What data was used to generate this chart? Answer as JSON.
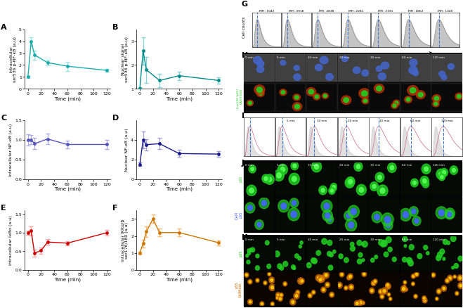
{
  "panels": {
    "A": {
      "x": [
        0,
        5,
        10,
        30,
        60,
        120
      ],
      "y": [
        1.0,
        4.0,
        2.85,
        2.2,
        1.9,
        1.55
      ],
      "yerr": [
        0.08,
        0.35,
        0.38,
        0.25,
        0.38,
        0.14
      ],
      "color": "#1AACAC",
      "light_color": "#88DDDD",
      "ylabel": "Intracellular\nser536 p-NF-κB (a.u)",
      "xlabel": "Time (min)",
      "ylim": [
        0,
        5
      ],
      "yticks": [
        0,
        1,
        2,
        3,
        4,
        5
      ],
      "xticks": [
        0,
        20,
        40,
        60,
        80,
        100,
        120
      ]
    },
    "B": {
      "x": [
        0,
        5,
        10,
        30,
        60,
        120
      ],
      "y": [
        1.0,
        2.6,
        1.8,
        1.35,
        1.55,
        1.35
      ],
      "yerr": [
        0.08,
        0.58,
        0.55,
        0.28,
        0.18,
        0.14
      ],
      "color": "#008B8B",
      "light_color": "#66CCCC",
      "ylabel": "Nuclear signal\nser536 p-NF-κB (a.u)",
      "xlabel": "Time (min)",
      "ylim": [
        1.0,
        3.5
      ],
      "yticks": [
        1,
        2,
        3
      ],
      "xticks": [
        0,
        20,
        40,
        60,
        80,
        100,
        120
      ]
    },
    "C": {
      "x": [
        0,
        5,
        10,
        30,
        60,
        120
      ],
      "y": [
        1.0,
        1.0,
        0.9,
        1.02,
        0.88,
        0.88
      ],
      "yerr": [
        0.14,
        0.12,
        0.14,
        0.14,
        0.1,
        0.11
      ],
      "color": "#5555BB",
      "light_color": "#9999DD",
      "ylabel": "Intracellular NF-κB (a.u)",
      "xlabel": "Time (min)",
      "ylim": [
        0,
        1.5
      ],
      "yticks": [
        0.0,
        0.5,
        1.0,
        1.5
      ],
      "xticks": [
        0,
        20,
        40,
        60,
        80,
        100,
        120
      ]
    },
    "D": {
      "x": [
        0,
        5,
        10,
        30,
        60,
        120
      ],
      "y": [
        1.5,
        4.0,
        3.5,
        3.6,
        2.6,
        2.55
      ],
      "yerr": [
        0.18,
        0.85,
        0.58,
        0.58,
        0.35,
        0.28
      ],
      "color": "#1A1A8B",
      "light_color": "#8888CC",
      "ylabel": "Nuclear NF-κB (a.u)",
      "xlabel": "Time (min)",
      "ylim": [
        0,
        6
      ],
      "yticks": [
        0,
        2,
        4
      ],
      "xticks": [
        0,
        20,
        40,
        60,
        80,
        100,
        120
      ]
    },
    "E": {
      "x": [
        0,
        5,
        10,
        20,
        30,
        60,
        120
      ],
      "y": [
        1.0,
        1.05,
        0.45,
        0.52,
        0.75,
        0.72,
        1.0
      ],
      "yerr": [
        0.05,
        0.12,
        0.09,
        0.08,
        0.08,
        0.06,
        0.08
      ],
      "color": "#CC0000",
      "light_color": "#FF8888",
      "ylabel": "Intracellular IκBα (a.u)",
      "xlabel": "Time (min)",
      "ylim": [
        0,
        1.6
      ],
      "yticks": [
        0.0,
        0.5,
        1.0,
        1.5
      ],
      "xticks": [
        0,
        20,
        40,
        60,
        80,
        100,
        120
      ]
    },
    "F": {
      "x": [
        0,
        5,
        10,
        20,
        30,
        60,
        120
      ],
      "y": [
        1.0,
        1.55,
        2.25,
        3.0,
        2.2,
        2.2,
        1.6
      ],
      "yerr": [
        0.06,
        0.22,
        0.32,
        0.25,
        0.22,
        0.22,
        0.15
      ],
      "color": "#CC7700",
      "light_color": "#FFAA55",
      "ylabel": "Intracellular IKKα/β\nser176/180 (a.u)",
      "xlabel": "Time (min)",
      "ylim": [
        0,
        3.5
      ],
      "yticks": [
        0,
        1,
        2,
        3
      ],
      "xticks": [
        0,
        20,
        40,
        60,
        80,
        100,
        120
      ]
    }
  },
  "G_mfi": [
    "MFI: 1042",
    "MFI: 3918",
    "MFI: 2838",
    "MFI: 2281",
    "MFI: 2191",
    "MFI: 1862",
    "MFI: 1340"
  ],
  "time_labels": [
    "0 min",
    "5 min",
    "10 min",
    "20 min",
    "30 min",
    "60 min",
    "120 min"
  ],
  "bg_color": "#ffffff"
}
